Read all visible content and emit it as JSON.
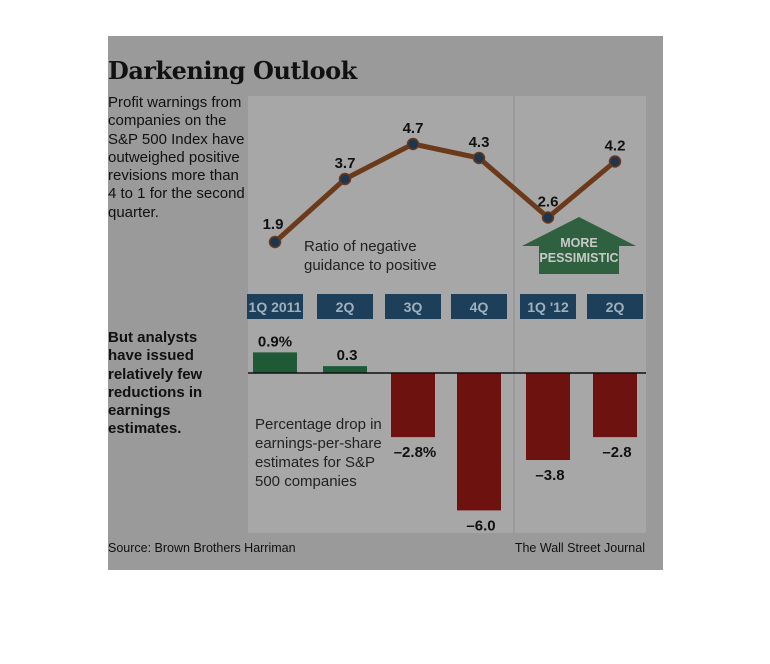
{
  "title": "Darkening Outlook",
  "intro": "Profit warnings from companies on the S&P 500 Index have outweighed positive revisions more than 4 to 1 for the second quarter.",
  "intro2": "But analysts have issued relatively few reductions in earnings estimates.",
  "source": "Source: Brown Brothers Harriman",
  "publisher": "The Wall Street Journal",
  "colors": {
    "line": "#6b3a1a",
    "point": "#1e3550",
    "bar_positive": "#1e5a36",
    "bar_negative": "#6e1210",
    "quarter_band": "#1d3f5a"
  },
  "chart_data": [
    {
      "type": "line",
      "categories": [
        "1Q 2011",
        "2Q",
        "3Q",
        "4Q",
        "1Q '12",
        "2Q"
      ],
      "series": [
        {
          "values": [
            1.9,
            3.7,
            4.7,
            4.3,
            2.6,
            4.2
          ]
        }
      ],
      "value_labels": [
        "1.9",
        "3.7",
        "4.7",
        "4.3",
        "2.6",
        "4.2"
      ],
      "annotation": "Ratio of negative guidance to positive",
      "callout": "MORE PESSIMISTIC",
      "grid": false
    },
    {
      "type": "bar",
      "categories": [
        "1Q 2011",
        "2Q",
        "3Q",
        "4Q",
        "1Q '12",
        "2Q"
      ],
      "values": [
        0.9,
        0.3,
        -2.8,
        -6.0,
        -3.8,
        -2.8
      ],
      "value_labels": [
        "0.9%",
        "0.3",
        "–2.8%",
        "–6.0",
        "–3.8",
        "–2.8"
      ],
      "annotation": "Percentage drop in earnings-per-share estimates for S&P 500 companies",
      "grid": false
    }
  ]
}
